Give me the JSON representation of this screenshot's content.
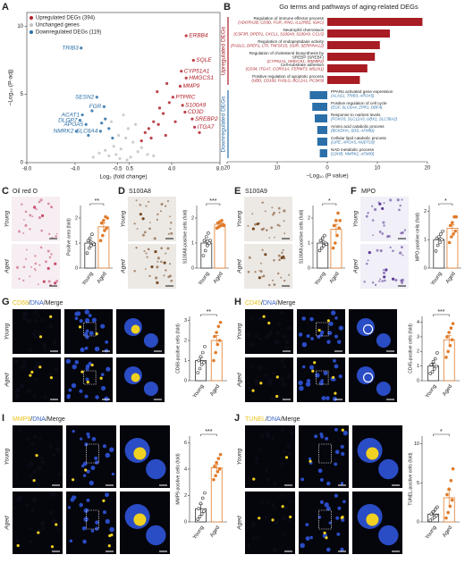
{
  "chart_data": [
    {
      "type": "scatter",
      "panel": "A",
      "xlabel": "Log₂ (fold change)",
      "ylabel": "−Log₁₀ (P-adj)",
      "xlim": [
        -8,
        8
      ],
      "ylim": [
        0,
        11
      ],
      "xticks": [
        {
          "value": -8,
          "label": "-8.0"
        },
        {
          "value": -4,
          "label": "-4.0"
        },
        -0.5,
        0.5,
        {
          "value": 4,
          "label": "4.0"
        },
        {
          "value": 8,
          "label": "8.0"
        }
      ],
      "yticks": [
        0,
        5,
        10
      ],
      "series": [
        {
          "name": "Upregulated DEGs (394)",
          "color": "#b2222a",
          "x": [
            5.2,
            5.8,
            4.8,
            5.2,
            4.7,
            4.1,
            4.9,
            5.1,
            5.7,
            5.9,
            2.1,
            2.5,
            3.0,
            3.3,
            3.8,
            2.8,
            4.3,
            6.3,
            3.5,
            2.3,
            1.5,
            1.8,
            2.9,
            3.6
          ],
          "values": [
            9.3,
            7.5,
            6.7,
            6.2,
            5.6,
            4.8,
            4.2,
            3.7,
            3.2,
            2.6,
            2.5,
            3.0,
            4.0,
            3.6,
            4.4,
            5.2,
            3.0,
            2.2,
            2.0,
            1.8,
            1.6,
            2.2,
            2.8,
            5.8
          ],
          "labels": [
            "ERBB4",
            "SQLE",
            "CYP51A1",
            "HMGCS1",
            "MMP9",
            "PTPRC",
            "S100A9",
            "CD3D",
            "SREBP2",
            "ITGA7",
            null,
            null,
            null,
            null,
            null,
            null,
            null,
            null,
            null,
            null,
            null,
            null,
            null,
            null
          ]
        },
        {
          "name": "Unchanged genes",
          "color": "#c4c4c4",
          "x": [
            -1.2,
            -0.8,
            -0.4,
            0,
            0.4,
            0.8,
            1.2,
            -0.6,
            0.6,
            -0.2,
            0.2,
            -1.5,
            1.5,
            -1,
            1,
            0.3,
            -0.3,
            -2,
            2,
            -2.5,
            2.5
          ],
          "values": [
            0.5,
            1.2,
            2.0,
            3.5,
            2.5,
            1.5,
            0.8,
            0.6,
            0.4,
            1.0,
            1.8,
            0.9,
            1.1,
            3.0,
            2.8,
            0.2,
            0.3,
            0.7,
            0.6,
            0.4,
            0.5
          ]
        },
        {
          "name": "Downregulated DEGs (119)",
          "color": "#2a6fa8",
          "x": [
            -3.5,
            -2.2,
            -1.6,
            -3.4,
            -3.6,
            -3.1,
            -3.9,
            -1.9,
            -2.6,
            -1.2,
            -1.5,
            -2.9,
            -0.9,
            -1.8
          ],
          "values": [
            8.4,
            4.8,
            4.1,
            3.5,
            3.1,
            2.8,
            2.3,
            2.3,
            3.8,
            2.5,
            3.2,
            2.0,
            1.8,
            2.9
          ],
          "labels": [
            "TRIB3",
            "SESN2",
            "FGR",
            "ACAT1",
            "DLGP7",
            "APOA5",
            "NMRK2",
            "SLC6A4",
            null,
            null,
            null,
            null,
            null,
            null
          ]
        }
      ]
    },
    {
      "type": "barh",
      "panel": "B",
      "title": "Go terms and pathways of aging-related DEGs",
      "xlabel": "−Log₁₀ (P value)",
      "xlim": [
        -20,
        20
      ],
      "xticks": [
        {
          "value": -20,
          "label": "20"
        },
        {
          "value": -10,
          "label": "10"
        },
        0,
        10,
        20
      ],
      "groups": [
        {
          "name": "Upregulated DEGs",
          "color": "#a81c24",
          "terms": [
            {
              "lines": [
                "Regulation of immune effector process"
              ],
              "genes": "(ADORA2B, CD3D, FGR, IFNG, IL12RB1, IGKC)"
            },
            {
              "lines": [
                "Neutrophil chemotaxis"
              ],
              "genes": "(CSF3R, DPEP1, CXCL1, S100A8, S100A9, CCL5)"
            },
            {
              "lines": [
                "Regulation of endopeptidase activity"
              ],
              "genes": "(FASLG, DPEP1, LTF, TNFSF15, SSIR, SERPINA12)"
            },
            {
              "lines": [
                "Regulation of cholesterol biosynthesis by",
                "SREBP (SREBF)"
              ],
              "genes": "(CYP51A1, HMGCS1, SREBP2)"
            },
            {
              "lines": [
                "Cell-substrate adhesion"
              ],
              "genes": "(CD34, ITGA7, CORO1A, FERMT3, MSLN1)"
            },
            {
              "lines": [
                "Positive regulation of apoptotic process"
              ],
              "genes": "(UBD, CD160, FASLG, BCL2A1, PCSK9)"
            }
          ],
          "values": [
            19,
            12.5,
            10.5,
            9.5,
            8,
            6.5
          ]
        },
        {
          "name": "Downregulated DEGs",
          "color": "#2a6fa8",
          "terms": [
            {
              "lines": [
                "PPARα activated gene expression"
              ],
              "genes": "(ALAS1, TRIB3, APOA5)"
            },
            {
              "lines": [
                "Positive regulation of cell cycle"
              ],
              "genes": "(EGF, SLC6A4, ZPR1, DBF4)"
            },
            {
              "lines": [
                "Response to nutrient levels"
              ],
              "genes": "(FOXO3, SLC12A3, UBX1, SLC38A2)"
            },
            {
              "lines": [
                "Amino acid catabolic process"
              ],
              "genes": "(BCKDHA, SDS, AFMID)"
            },
            {
              "lines": [
                "Cellular lipid catabolic process"
              ],
              "genes": "(LIPE, APOA5, NUDT19)"
            },
            {
              "lines": [
                "NAD metabolic process"
              ],
              "genes": "(LDHB, NMRK2, AFMID)"
            }
          ],
          "values": [
            -3.5,
            -3,
            -2.5,
            -2,
            -2,
            -1.5
          ]
        }
      ]
    },
    {
      "type": "bar",
      "panel": "C",
      "title": "Oil red O",
      "image_rows": [
        "Young",
        "Aged"
      ],
      "ylabel": "Positive area (fold)",
      "categories": [
        "Young",
        "Aged"
      ],
      "colors": [
        "#333333",
        "#e07b2a"
      ],
      "values": [
        1,
        1.65
      ],
      "errors": [
        0.1,
        0.15
      ],
      "points": [
        [
          0.6,
          0.8,
          0.9,
          1.0,
          1.1,
          1.2,
          1.35,
          0.95
        ],
        [
          1.1,
          1.3,
          1.5,
          1.6,
          1.8,
          1.9,
          2.05,
          2.0
        ]
      ],
      "ylim": [
        0,
        2.5
      ],
      "yticks": [
        0,
        1,
        2
      ],
      "significance": "**"
    },
    {
      "type": "bar",
      "panel": "D",
      "title": "S100A8",
      "image_rows": [
        "Young",
        "Aged"
      ],
      "ylabel": "S100A8-positive cells (fold)",
      "categories": [
        "Young",
        "Aged"
      ],
      "colors": [
        "#333333",
        "#e07b2a"
      ],
      "values": [
        1,
        1.75
      ],
      "errors": [
        0.12,
        0.05
      ],
      "points": [
        [
          0.5,
          0.7,
          0.9,
          1.0,
          1.1,
          1.25,
          1.4,
          1.1
        ],
        [
          1.6,
          1.65,
          1.7,
          1.75,
          1.8,
          1.85,
          1.9,
          1.7
        ]
      ],
      "ylim": [
        0,
        2.5
      ],
      "yticks": [
        0,
        1,
        2
      ],
      "significance": "***"
    },
    {
      "type": "bar",
      "panel": "E",
      "title": "S100A9",
      "image_rows": [
        "Young",
        "Aged"
      ],
      "ylabel": "S100A9-positive cells (fold)",
      "categories": [
        "Young",
        "Aged"
      ],
      "colors": [
        "#333333",
        "#e07b2a"
      ],
      "values": [
        1,
        1.55
      ],
      "errors": [
        0.1,
        0.2
      ],
      "points": [
        [
          0.7,
          0.8,
          0.9,
          1.0,
          1.1,
          1.2,
          1.3,
          0.95
        ],
        [
          0.8,
          1.0,
          1.3,
          1.6,
          1.7,
          1.9,
          2.2,
          1.9
        ]
      ],
      "ylim": [
        0,
        2.5
      ],
      "yticks": [
        0,
        1,
        2
      ],
      "significance": "*"
    },
    {
      "type": "bar",
      "panel": "F",
      "title": "MPO",
      "image_rows": [
        "Young",
        "Aged"
      ],
      "ylabel": "MPO-positive cells (fold)",
      "categories": [
        "Young",
        "Aged"
      ],
      "colors": [
        "#333333",
        "#e07b2a"
      ],
      "values": [
        1,
        1.4
      ],
      "errors": [
        0.08,
        0.12
      ],
      "points": [
        [
          0.6,
          0.8,
          0.9,
          1.0,
          1.05,
          1.1,
          1.2,
          1.3
        ],
        [
          0.9,
          1.1,
          1.2,
          1.3,
          1.5,
          1.6,
          1.8,
          1.8
        ]
      ],
      "ylim": [
        0,
        2.2
      ],
      "yticks": [
        0,
        1,
        2
      ],
      "significance": "*"
    },
    {
      "type": "bar",
      "panel": "G",
      "title_parts": [
        {
          "text": "CD68",
          "color": "#e8c21a"
        },
        {
          "text": "/",
          "color": "#222222"
        },
        {
          "text": "DNA",
          "color": "#3a62c8"
        },
        {
          "text": "/Merge",
          "color": "#222222"
        }
      ],
      "image_rows": [
        "Young",
        "Aged"
      ],
      "ylabel": "CD68-positive cells (fold)",
      "categories": [
        "Young",
        "Aged"
      ],
      "colors": [
        "#333333",
        "#e07b2a"
      ],
      "values": [
        1,
        2.0
      ],
      "errors": [
        0.15,
        0.25
      ],
      "points": [
        [
          0.4,
          0.6,
          0.8,
          0.9,
          1.0,
          1.2,
          1.4,
          1.7
        ],
        [
          1.0,
          1.4,
          1.8,
          2.0,
          2.2,
          2.4,
          2.7,
          2.9
        ]
      ],
      "ylim": [
        0,
        3.2
      ],
      "yticks": [
        0,
        1,
        2,
        3
      ],
      "significance": "**"
    },
    {
      "type": "bar",
      "panel": "H",
      "title_parts": [
        {
          "text": "CD45",
          "color": "#e8c21a"
        },
        {
          "text": "/",
          "color": "#222222"
        },
        {
          "text": "DNA",
          "color": "#3a62c8"
        },
        {
          "text": "/Merge",
          "color": "#222222"
        }
      ],
      "image_rows": [
        "Young",
        "Aged"
      ],
      "ylabel": "CD45-positive cells (fold)",
      "categories": [
        "Young",
        "Aged"
      ],
      "colors": [
        "#333333",
        "#e07b2a"
      ],
      "values": [
        1,
        2.8
      ],
      "errors": [
        0.2,
        0.3
      ],
      "points": [
        [
          0.5,
          0.6,
          0.8,
          1.0,
          1.1,
          1.3,
          1.5,
          1.9
        ],
        [
          1.6,
          2.0,
          2.4,
          2.8,
          3.0,
          3.3,
          3.6,
          3.9
        ]
      ],
      "ylim": [
        0,
        4.4
      ],
      "yticks": [
        0,
        1,
        2,
        3,
        4
      ],
      "significance": "***"
    },
    {
      "type": "bar",
      "panel": "I",
      "title_parts": [
        {
          "text": "MMP9",
          "color": "#e8c21a"
        },
        {
          "text": "/",
          "color": "#222222"
        },
        {
          "text": "DNA",
          "color": "#3a62c8"
        },
        {
          "text": "/Merge",
          "color": "#222222"
        }
      ],
      "image_rows": [
        "Young",
        "Aged"
      ],
      "ylabel": "MMP9-positive cells (fold)",
      "categories": [
        "Young",
        "Aged"
      ],
      "colors": [
        "#333333",
        "#e07b2a"
      ],
      "values": [
        1,
        4.1
      ],
      "errors": [
        0.35,
        0.25
      ],
      "points": [
        [
          0.2,
          0.4,
          0.6,
          0.8,
          1.0,
          1.4,
          1.8,
          2.2
        ],
        [
          3.2,
          3.5,
          3.8,
          4.0,
          4.2,
          4.5,
          4.8,
          5.1
        ]
      ],
      "ylim": [
        0,
        6.5
      ],
      "yticks": [
        0,
        2,
        4,
        6
      ],
      "significance": "***"
    },
    {
      "type": "bar",
      "panel": "J",
      "title_parts": [
        {
          "text": "TUNEL",
          "color": "#e8c21a"
        },
        {
          "text": "/",
          "color": "#222222"
        },
        {
          "text": "DNA",
          "color": "#3a62c8"
        },
        {
          "text": "/Merge",
          "color": "#222222"
        }
      ],
      "image_rows": [
        "Young",
        "Aged"
      ],
      "ylabel": "TUNEL-positive cells (fold)",
      "categories": [
        "Young",
        "Aged"
      ],
      "colors": [
        "#333333",
        "#e07b2a"
      ],
      "values": [
        1,
        3.1
      ],
      "errors": [
        0.3,
        1.0
      ],
      "points": [
        [
          0.2,
          0.4,
          0.6,
          0.8,
          1.0,
          1.3,
          1.6,
          1.9
        ],
        [
          0.5,
          1.2,
          2.0,
          2.8,
          3.5,
          4.2,
          5.3,
          6.8
        ]
      ],
      "ylim": [
        0,
        11
      ],
      "yticks": [
        0,
        5,
        10
      ],
      "significance": "*"
    }
  ]
}
